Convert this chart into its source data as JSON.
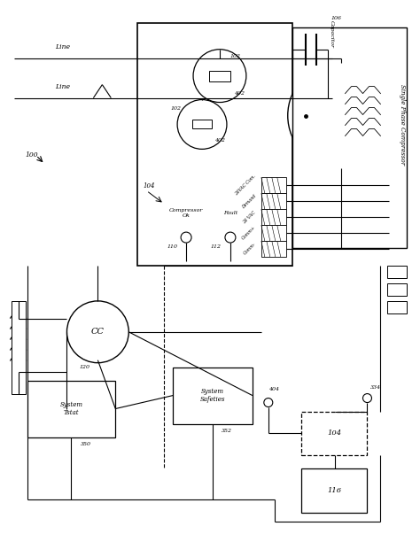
{
  "bg_color": "#ffffff",
  "lc": "#000000",
  "fig_w": 4.74,
  "fig_h": 6.03,
  "dpi": 100,
  "labels": {
    "line_top": "Line",
    "line_bot": "Line",
    "single_phase": "Single Phase Compressor",
    "capacitor": "Capacitor",
    "compressor_ok": "Compressor\nOk",
    "fault": "Fault",
    "ref_100": "100",
    "ref_104_label": "104",
    "ref_104_box": "104",
    "ref_106": "106",
    "ref_110": "110",
    "ref_112": "112",
    "ref_116": "116",
    "ref_120": "120",
    "ref_102a": "102",
    "ref_102b": "102",
    "ref_402a": "402",
    "ref_402b": "402",
    "ref_334": "334",
    "ref_350": "350",
    "ref_352": "352",
    "ref_404": "404",
    "cc": "CC",
    "system_tstat": "System\nTstat",
    "system_safeties": "System\nSafeties",
    "vac_com": "24VAC Com.",
    "demand": "Demand",
    "vac24": "24 VAC",
    "comm_plus": "Comm+",
    "comm_minus": "Comm-"
  }
}
